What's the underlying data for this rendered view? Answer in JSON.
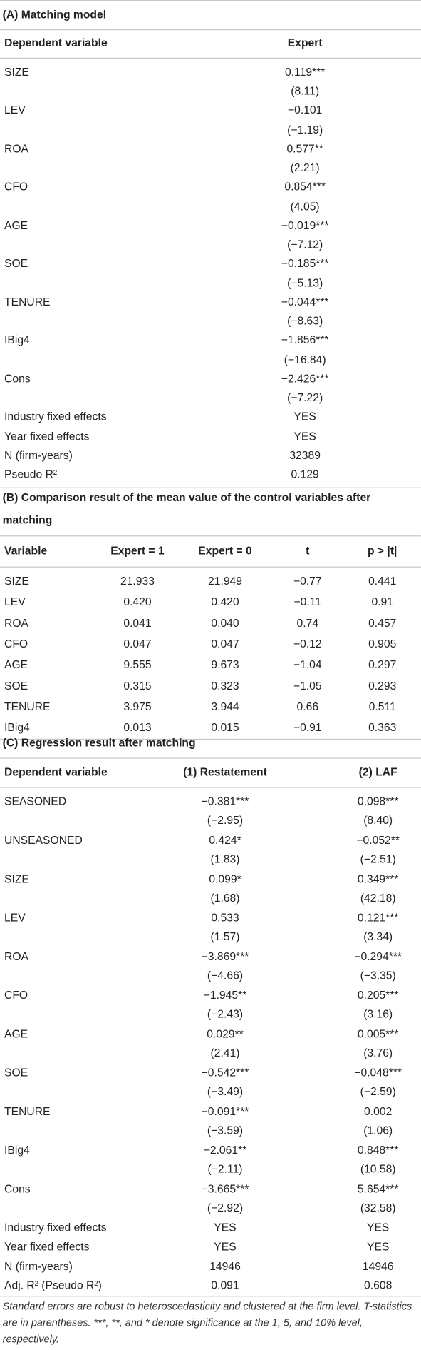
{
  "panels": [
    {
      "title": "(A) Matching model",
      "header": [
        "Dependent variable",
        "Expert"
      ],
      "rows": [
        [
          "SIZE",
          "0.119***"
        ],
        [
          null,
          "(8.11)"
        ],
        [
          "LEV",
          "−0.101"
        ],
        [
          null,
          "(−1.19)"
        ],
        [
          "ROA",
          "0.577**"
        ],
        [
          null,
          "(2.21)"
        ],
        [
          "CFO",
          "0.854***"
        ],
        [
          null,
          "(4.05)"
        ],
        [
          "AGE",
          "−0.019***"
        ],
        [
          null,
          "(−7.12)"
        ],
        [
          "SOE",
          "−0.185***"
        ],
        [
          null,
          "(−5.13)"
        ],
        [
          "TENURE",
          "−0.044***"
        ],
        [
          null,
          "(−8.63)"
        ],
        [
          "IBig4",
          "−1.856***"
        ],
        [
          null,
          "(−16.84)"
        ],
        [
          "Cons",
          "−2.426***"
        ],
        [
          null,
          "(−7.22)"
        ],
        [
          "Industry fixed effects",
          "YES"
        ],
        [
          "Year fixed effects",
          "YES"
        ],
        [
          "N (firm-years)",
          "32389"
        ],
        [
          "Pseudo R²",
          "0.129"
        ]
      ]
    },
    {
      "title": "(B) Comparison result of the mean value of the control variables after matching",
      "header": [
        "Variable",
        "Expert = 1",
        "Expert = 0",
        "t",
        "p > |t|"
      ],
      "rows": [
        [
          "SIZE",
          "21.933",
          "21.949",
          "−0.77",
          "0.441"
        ],
        [
          "LEV",
          "0.420",
          "0.420",
          "−0.11",
          "0.91"
        ],
        [
          "ROA",
          "0.041",
          "0.040",
          "0.74",
          "0.457"
        ],
        [
          "CFO",
          "0.047",
          "0.047",
          "−0.12",
          "0.905"
        ],
        [
          "AGE",
          "9.555",
          "9.673",
          "−1.04",
          "0.297"
        ],
        [
          "SOE",
          "0.315",
          "0.323",
          "−1.05",
          "0.293"
        ],
        [
          "TENURE",
          "3.975",
          "3.944",
          "0.66",
          "0.511"
        ],
        [
          "IBig4",
          "0.013",
          "0.015",
          "−0.91",
          "0.363"
        ]
      ]
    },
    {
      "title": "(C) Regression result after matching",
      "header": [
        "Dependent variable",
        "(1) Restatement",
        "(2) LAF"
      ],
      "rows": [
        [
          "SEASONED",
          "−0.381***",
          "0.098***"
        ],
        [
          null,
          "(−2.95)",
          "(8.40)"
        ],
        [
          "UNSEASONED",
          "0.424*",
          "−0.052**"
        ],
        [
          null,
          "(1.83)",
          "(−2.51)"
        ],
        [
          "SIZE",
          "0.099*",
          "0.349***"
        ],
        [
          null,
          "(1.68)",
          "(42.18)"
        ],
        [
          "LEV",
          "0.533",
          "0.121***"
        ],
        [
          null,
          "(1.57)",
          "(3.34)"
        ],
        [
          "ROA",
          "−3.869***",
          "−0.294***"
        ],
        [
          null,
          "(−4.66)",
          "(−3.35)"
        ],
        [
          "CFO",
          "−1.945**",
          "0.205***"
        ],
        [
          null,
          "(−2.43)",
          "(3.16)"
        ],
        [
          "AGE",
          "0.029**",
          "0.005***"
        ],
        [
          null,
          "(2.41)",
          "(3.76)"
        ],
        [
          "SOE",
          "−0.542***",
          "−0.048***"
        ],
        [
          null,
          "(−3.49)",
          "(−2.59)"
        ],
        [
          "TENURE",
          "−0.091***",
          "0.002"
        ],
        [
          null,
          "(−3.59)",
          "(1.06)"
        ],
        [
          "IBig4",
          "−2.061**",
          "0.848***"
        ],
        [
          null,
          "(−2.11)",
          "(10.58)"
        ],
        [
          "Cons",
          "−3.665***",
          "5.654***"
        ],
        [
          null,
          "(−2.92)",
          "(32.58)"
        ],
        [
          "Industry fixed effects",
          "YES",
          "YES"
        ],
        [
          "Year fixed effects",
          "YES",
          "YES"
        ],
        [
          "N (firm-years)",
          "14946",
          "14946"
        ],
        [
          "Adj. R² (Pseudo R²)",
          "0.091",
          "0.608"
        ]
      ]
    }
  ],
  "footnote": "Standard errors are robust to heteroscedasticity and clustered at the firm level. T-statistics are in parentheses. ***, **, and * denote significance at the 1, 5, and 10% level, respectively."
}
